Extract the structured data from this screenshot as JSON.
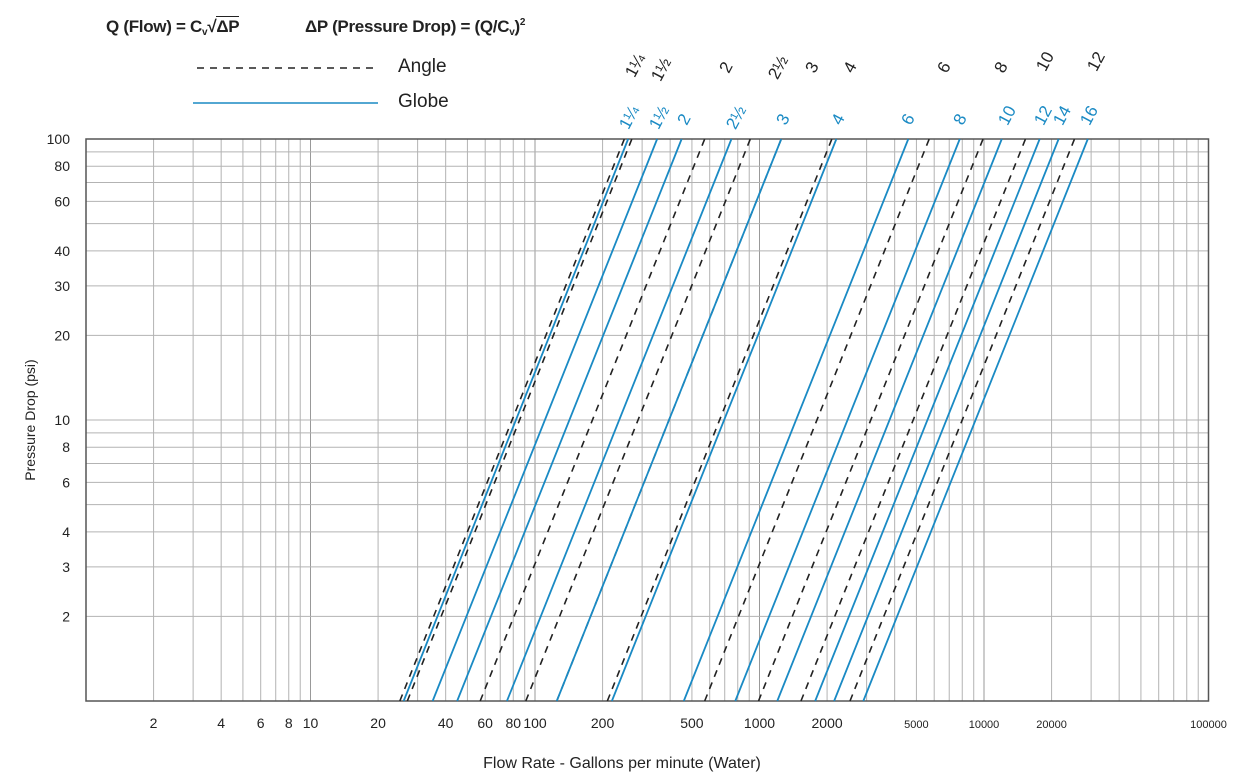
{
  "header": {
    "formula_flow": {
      "prefix": "Q (Flow) = C",
      "sub": "v",
      "root": "√",
      "radicand": "ΔP"
    },
    "formula_drop": {
      "prefix": "ΔP (Pressure Drop) = (Q/C",
      "sub": "v",
      "suffix": ")",
      "sup": "2"
    }
  },
  "colors": {
    "angle": "#222222",
    "globe": "#1a8ac4",
    "grid": "#b3b3b3",
    "frame": "#555555"
  },
  "chart_data": {
    "type": "line",
    "title": "",
    "xlabel": "Flow Rate - Gallons per minute (Water)",
    "ylabel": "Pressure Drop (psi)",
    "xscale": "log",
    "yscale": "log",
    "xlim": [
      1,
      100000
    ],
    "ylim": [
      1,
      100
    ],
    "grid": true,
    "legend": {
      "placement": "top-left",
      "entries": [
        {
          "name": "Angle",
          "style": "dashed"
        },
        {
          "name": "Globe",
          "style": "solid"
        }
      ]
    },
    "x_ticks": [
      "2",
      "4",
      "6",
      "8",
      "10",
      "20",
      "40",
      "60",
      "80",
      "100",
      "200",
      "500",
      "1000",
      "2000",
      "5000",
      "10000",
      "20000",
      "100000"
    ],
    "x_tick_values": [
      2,
      4,
      6,
      8,
      10,
      20,
      40,
      60,
      80,
      100,
      200,
      500,
      1000,
      2000,
      5000,
      10000,
      20000,
      100000
    ],
    "y_ticks": [
      "100",
      "80",
      "60",
      "40",
      "30",
      "20",
      "10",
      "8",
      "6",
      "4",
      "3",
      "2"
    ],
    "y_tick_values": [
      100,
      80,
      60,
      40,
      30,
      20,
      10,
      8,
      6,
      4,
      3,
      2
    ],
    "relation": "Q = Cv * sqrt(ΔP)",
    "series": [
      {
        "name": "Angle",
        "style": "dashed",
        "sizes": [
          "1¼",
          "1½",
          "2",
          "2½",
          "3",
          "4",
          "6",
          "8",
          "10",
          "12"
        ],
        "cv": [
          25,
          27,
          57,
          91,
          125,
          210,
          570,
          990,
          1530,
          2530
        ]
      },
      {
        "name": "Globe",
        "style": "solid",
        "sizes": [
          "1¼",
          "1½",
          "2",
          "2½",
          "3",
          "4",
          "6",
          "8",
          "10",
          "12",
          "14",
          "16"
        ],
        "cv": [
          26,
          35,
          45,
          75,
          125,
          220,
          460,
          780,
          1200,
          1770,
          2150,
          2900
        ]
      }
    ]
  }
}
